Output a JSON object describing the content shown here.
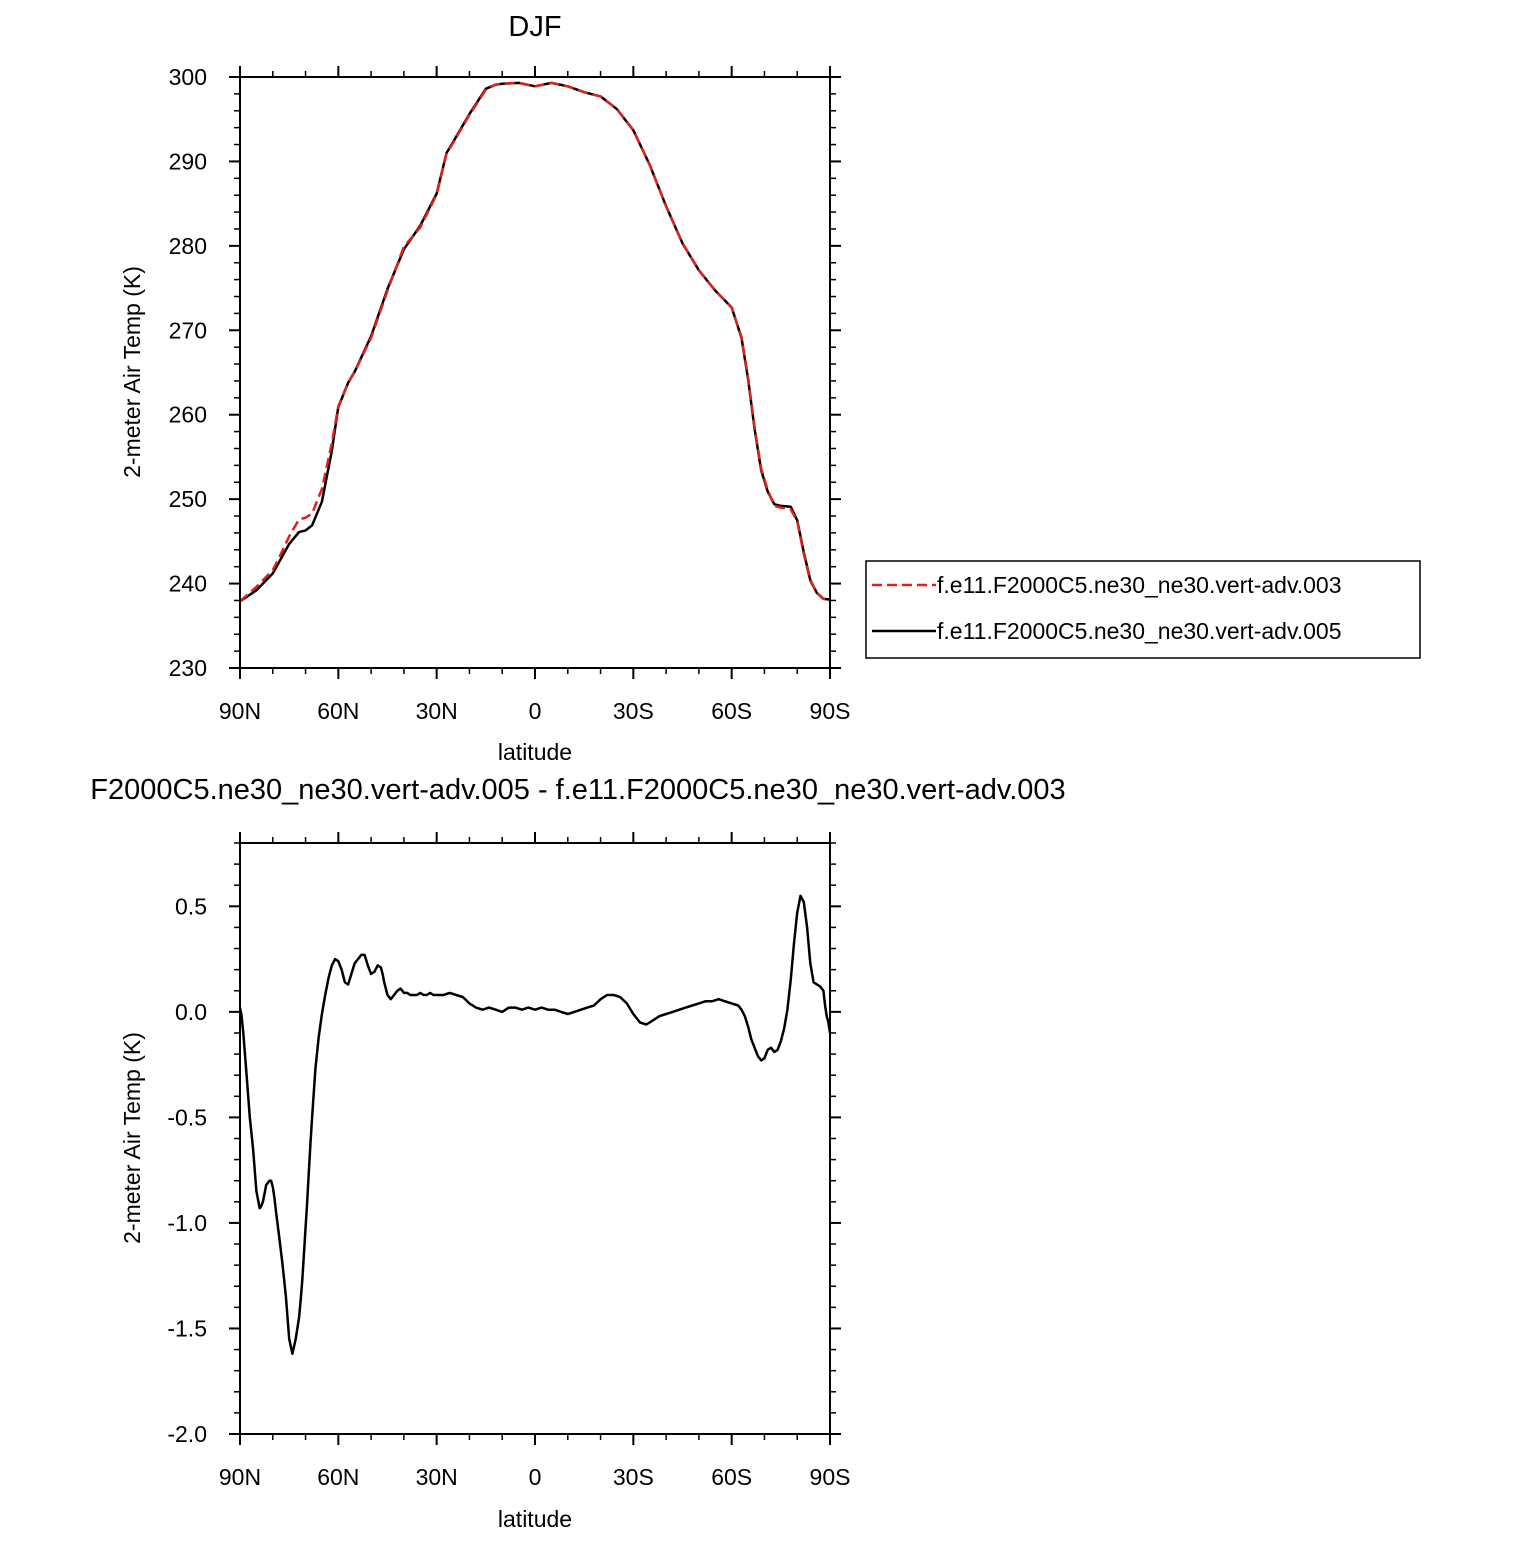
{
  "chart_data": [
    {
      "type": "line",
      "title": "DJF",
      "xlabel": "latitude",
      "ylabel": "2-meter Air Temp (K)",
      "xlim": [
        90,
        -90
      ],
      "ylim": [
        230,
        300
      ],
      "x_tick_values": [
        90,
        60,
        30,
        0,
        -30,
        -60,
        -90
      ],
      "x_tick_labels": [
        "90N",
        "60N",
        "30N",
        "0",
        "30S",
        "60S",
        "90S"
      ],
      "y_tick_values": [
        230,
        240,
        250,
        260,
        270,
        280,
        290,
        300
      ],
      "y_tick_labels": [
        "230",
        "240",
        "250",
        "260",
        "270",
        "280",
        "290",
        "300"
      ],
      "grid": false,
      "legend_position": "right",
      "series": [
        {
          "name": "f.e11.F2000C5.ne30_ne30.vert-adv.003",
          "color": "#e0201b",
          "dash": "dashed",
          "x": [
            90,
            85,
            80,
            78,
            75,
            72,
            70,
            68,
            65,
            62,
            60,
            57,
            55,
            50,
            45,
            40,
            35,
            30,
            27,
            25,
            20,
            15,
            12,
            10,
            5,
            0,
            -5,
            -10,
            -15,
            -20,
            -25,
            -30,
            -35,
            -40,
            -45,
            -50,
            -55,
            -60,
            -63,
            -65,
            -67,
            -69,
            -71,
            -73,
            -75,
            -78,
            -80,
            -82,
            -84,
            -86,
            -88,
            -90
          ],
          "y": [
            237.9,
            239.6,
            241.6,
            243.1,
            245.6,
            247.6,
            247.8,
            248.3,
            251.2,
            256.6,
            261.0,
            263.8,
            265.1,
            269.1,
            274.7,
            279.9,
            282.2,
            286.1,
            290.9,
            292.2,
            295.5,
            298.5,
            299.1,
            299.2,
            299.3,
            298.9,
            299.3,
            298.9,
            298.2,
            297.7,
            296.2,
            293.7,
            289.6,
            284.7,
            280.3,
            277.1,
            274.7,
            272.7,
            269.2,
            264.4,
            258.5,
            253.6,
            251.1,
            249.2,
            249.0,
            248.8,
            247.4,
            243.5,
            240.3,
            238.9,
            238.2,
            238.1
          ]
        },
        {
          "name": "f.e11.F2000C5.ne30_ne30.vert-adv.005",
          "color": "#000000",
          "dash": "solid",
          "x": [
            90,
            85,
            80,
            78,
            75,
            72,
            70,
            68,
            65,
            62,
            60,
            57,
            55,
            50,
            45,
            40,
            35,
            30,
            27,
            25,
            20,
            15,
            12,
            10,
            5,
            0,
            -5,
            -10,
            -15,
            -20,
            -25,
            -30,
            -35,
            -40,
            -45,
            -50,
            -55,
            -60,
            -63,
            -65,
            -67,
            -69,
            -71,
            -73,
            -75,
            -78,
            -80,
            -82,
            -84,
            -86,
            -88,
            -90
          ],
          "y": [
            237.9,
            239.2,
            241.2,
            242.6,
            244.7,
            246.1,
            246.3,
            246.9,
            249.7,
            255.7,
            260.9,
            263.8,
            265.1,
            269.3,
            274.9,
            279.6,
            282.4,
            286.2,
            291.0,
            292.3,
            295.6,
            298.6,
            299.1,
            299.2,
            299.3,
            298.9,
            299.3,
            298.9,
            298.2,
            297.7,
            296.2,
            293.7,
            289.6,
            284.7,
            280.3,
            277.1,
            274.7,
            272.7,
            269.1,
            264.2,
            258.3,
            253.4,
            250.9,
            249.4,
            249.2,
            249.1,
            247.5,
            243.7,
            240.4,
            238.9,
            238.2,
            238.1
          ]
        }
      ]
    },
    {
      "type": "line",
      "title": "F2000C5.ne30_ne30.vert-adv.005 - f.e11.F2000C5.ne30_ne30.vert-adv.003",
      "xlabel": "latitude",
      "ylabel": "2-meter Air Temp (K)",
      "xlim": [
        90,
        -90
      ],
      "ylim": [
        -2.0,
        0.8
      ],
      "x_tick_values": [
        90,
        60,
        30,
        0,
        -30,
        -60,
        -90
      ],
      "x_tick_labels": [
        "90N",
        "60N",
        "30N",
        "0",
        "30S",
        "60S",
        "90S"
      ],
      "y_tick_values": [
        -2.0,
        -1.5,
        -1.0,
        -0.5,
        0.0,
        0.5
      ],
      "y_tick_labels": [
        "-2.0",
        "-1.5",
        "-1.0",
        "-0.5",
        "0.0",
        "0.5"
      ],
      "grid": false,
      "series": [
        {
          "color": "#000000",
          "dash": "solid",
          "x": [
            90,
            89.5,
            89,
            88,
            87,
            86,
            85,
            84,
            83.5,
            83,
            82.5,
            82,
            81.5,
            81,
            80.5,
            80,
            79.5,
            79,
            78,
            77,
            76,
            75,
            74,
            73,
            72,
            71.5,
            71,
            70.5,
            70,
            69.5,
            69,
            68.5,
            68,
            67,
            66,
            65,
            64,
            63,
            62,
            61,
            60,
            59,
            58,
            57,
            56,
            55,
            54,
            53,
            52,
            51,
            50,
            49,
            48,
            47,
            46.5,
            46,
            45,
            44,
            43,
            42,
            41,
            40,
            39,
            38,
            37,
            36,
            35,
            34,
            33,
            32,
            31,
            30,
            28,
            26,
            24,
            22,
            20,
            18,
            16,
            14,
            12,
            10,
            8,
            6,
            4,
            2,
            0,
            -2,
            -4,
            -6,
            -8,
            -10,
            -12,
            -14,
            -16,
            -18,
            -20,
            -22,
            -24,
            -26,
            -28,
            -30,
            -32,
            -34,
            -36,
            -38,
            -40,
            -42,
            -44,
            -46,
            -48,
            -50,
            -52,
            -54,
            -56,
            -58,
            -60,
            -62,
            -63,
            -64,
            -65,
            -66,
            -67,
            -68,
            -69,
            -70,
            -71,
            -72,
            -73,
            -74,
            -75,
            -76,
            -77,
            -78,
            -79,
            -80,
            -81,
            -82,
            -83,
            -84,
            -85,
            -86,
            -87,
            -88,
            -88.5,
            -89,
            -89.5,
            -90
          ],
          "y": [
            0.02,
            -0.02,
            -0.1,
            -0.3,
            -0.5,
            -0.65,
            -0.85,
            -0.93,
            -0.92,
            -0.9,
            -0.86,
            -0.82,
            -0.81,
            -0.8,
            -0.8,
            -0.83,
            -0.88,
            -0.95,
            -1.07,
            -1.2,
            -1.35,
            -1.55,
            -1.62,
            -1.55,
            -1.45,
            -1.37,
            -1.27,
            -1.15,
            -1.02,
            -0.9,
            -0.76,
            -0.62,
            -0.5,
            -0.27,
            -0.12,
            -0.01,
            0.08,
            0.16,
            0.22,
            0.25,
            0.24,
            0.2,
            0.14,
            0.13,
            0.18,
            0.23,
            0.25,
            0.27,
            0.27,
            0.22,
            0.18,
            0.19,
            0.22,
            0.21,
            0.18,
            0.14,
            0.08,
            0.06,
            0.08,
            0.1,
            0.11,
            0.09,
            0.09,
            0.08,
            0.08,
            0.08,
            0.09,
            0.08,
            0.08,
            0.09,
            0.08,
            0.08,
            0.08,
            0.09,
            0.08,
            0.07,
            0.04,
            0.02,
            0.01,
            0.02,
            0.01,
            0.0,
            0.02,
            0.02,
            0.01,
            0.02,
            0.01,
            0.02,
            0.01,
            0.01,
            0.0,
            -0.01,
            0.0,
            0.01,
            0.02,
            0.03,
            0.06,
            0.08,
            0.08,
            0.07,
            0.04,
            -0.01,
            -0.05,
            -0.06,
            -0.04,
            -0.02,
            -0.01,
            0.0,
            0.01,
            0.02,
            0.03,
            0.04,
            0.05,
            0.05,
            0.06,
            0.05,
            0.04,
            0.03,
            0.01,
            -0.02,
            -0.07,
            -0.13,
            -0.17,
            -0.21,
            -0.23,
            -0.22,
            -0.18,
            -0.17,
            -0.19,
            -0.18,
            -0.14,
            -0.08,
            0.01,
            0.15,
            0.32,
            0.47,
            0.55,
            0.52,
            0.4,
            0.23,
            0.14,
            0.13,
            0.12,
            0.1,
            0.03,
            -0.02,
            -0.05,
            -0.1
          ]
        }
      ]
    }
  ],
  "colors": {
    "series_red": "#e0201b",
    "series_black": "#000000",
    "axes": "#000000",
    "background": "#ffffff"
  }
}
